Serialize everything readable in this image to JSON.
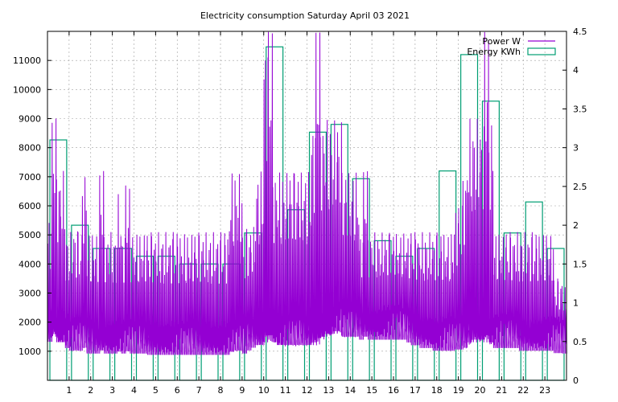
{
  "chart_data": {
    "type": "bar",
    "title": "Electricity consumption Saturday April 03 2021",
    "xlabel": "",
    "ylabel": "",
    "y2label": "",
    "x_ticks": [
      "1",
      "2",
      "3",
      "4",
      "5",
      "6",
      "7",
      "8",
      "9",
      "10",
      "11",
      "12",
      "13",
      "14",
      "15",
      "16",
      "17",
      "18",
      "19",
      "20",
      "21",
      "22",
      "23"
    ],
    "xlim": [
      0,
      24
    ],
    "ylim": [
      0,
      12000
    ],
    "y_ticks": [
      "1000",
      "2000",
      "3000",
      "4000",
      "5000",
      "6000",
      "7000",
      "8000",
      "9000",
      "10000",
      "11000"
    ],
    "y2lim": [
      0,
      4.5
    ],
    "y2_ticks": [
      "0",
      "0.5",
      "1",
      "1.5",
      "2",
      "2.5",
      "3",
      "3.5",
      "4",
      "4.5"
    ],
    "grid": true,
    "legend_position": "top-right",
    "colors": {
      "power": "#9400d3",
      "energy": "#009e73"
    },
    "series": [
      {
        "name": "Power W",
        "kind": "line",
        "axis": "left",
        "x": [
          0.0,
          0.2,
          0.4,
          0.6,
          0.8,
          1.0,
          1.2,
          1.4,
          1.6,
          1.8,
          2.0,
          2.2,
          2.4,
          2.6,
          2.8,
          3.0,
          3.2,
          3.4,
          3.6,
          3.8,
          4.0,
          4.2,
          4.4,
          4.6,
          4.8,
          5.0,
          5.2,
          5.4,
          5.6,
          5.8,
          6.0,
          6.2,
          6.4,
          6.6,
          6.8,
          7.0,
          7.2,
          7.4,
          7.6,
          7.8,
          8.0,
          8.2,
          8.4,
          8.6,
          8.8,
          9.0,
          9.2,
          9.4,
          9.6,
          9.8,
          10.0,
          10.2,
          10.4,
          10.6,
          10.8,
          11.0,
          11.2,
          11.4,
          11.6,
          11.8,
          12.0,
          12.2,
          12.4,
          12.6,
          12.8,
          13.0,
          13.2,
          13.4,
          13.6,
          13.8,
          14.0,
          14.2,
          14.4,
          14.6,
          14.8,
          15.0,
          15.2,
          15.4,
          15.6,
          15.8,
          16.0,
          16.2,
          16.4,
          16.6,
          16.8,
          17.0,
          17.2,
          17.4,
          17.6,
          17.8,
          18.0,
          18.2,
          18.4,
          18.6,
          18.8,
          19.0,
          19.2,
          19.4,
          19.6,
          19.8,
          20.0,
          20.2,
          20.4,
          20.6,
          20.8,
          21.0,
          21.2,
          21.4,
          21.6,
          21.8,
          22.0,
          22.2,
          22.4,
          22.6,
          22.8,
          23.0,
          23.2,
          23.4,
          23.6,
          23.8,
          24.0
        ],
        "high": [
          5600,
          9000,
          7200,
          7200,
          5100,
          5100,
          5300,
          5100,
          7200,
          5100,
          5100,
          5100,
          7200,
          5100,
          5100,
          5100,
          6400,
          5100,
          6700,
          5100,
          5100,
          5100,
          5100,
          5100,
          5100,
          5100,
          5100,
          5100,
          5100,
          5100,
          5100,
          5100,
          5100,
          5100,
          5100,
          5100,
          5100,
          5100,
          5100,
          5100,
          5100,
          5100,
          7200,
          7200,
          7200,
          5100,
          5300,
          5300,
          7200,
          7200,
          11900,
          12000,
          7200,
          7200,
          7200,
          7200,
          7200,
          7200,
          7200,
          7200,
          7200,
          9000,
          12000,
          9000,
          9000,
          9000,
          9000,
          9000,
          7200,
          7200,
          7200,
          7200,
          5100,
          7200,
          5100,
          5100,
          5100,
          5100,
          5100,
          5100,
          5100,
          5100,
          5100,
          5100,
          5100,
          5100,
          5100,
          5100,
          5100,
          5100,
          5100,
          5100,
          5100,
          5100,
          6000,
          6000,
          7200,
          9000,
          9000,
          9000,
          9000,
          12000,
          9000,
          5100,
          5100,
          5100,
          5100,
          5100,
          5100,
          5100,
          5100,
          5100,
          5100,
          5100,
          5100,
          5100,
          5100,
          3500,
          3500,
          3200,
          3200
        ],
        "low": [
          1100,
          1200,
          1000,
          1000,
          900,
          800,
          800,
          800,
          800,
          700,
          700,
          700,
          700,
          700,
          700,
          700,
          700,
          700,
          700,
          700,
          700,
          700,
          700,
          650,
          650,
          650,
          650,
          650,
          650,
          650,
          650,
          650,
          650,
          650,
          650,
          650,
          650,
          650,
          650,
          650,
          650,
          650,
          650,
          700,
          700,
          700,
          800,
          900,
          900,
          900,
          1000,
          1000,
          1000,
          900,
          900,
          900,
          900,
          900,
          900,
          900,
          900,
          900,
          900,
          1100,
          1200,
          1200,
          1300,
          1300,
          1200,
          1200,
          1200,
          1200,
          1200,
          1200,
          1200,
          1200,
          1200,
          1200,
          1200,
          1200,
          1200,
          1200,
          1200,
          1100,
          1000,
          1000,
          900,
          900,
          900,
          800,
          800,
          800,
          800,
          800,
          800,
          800,
          800,
          900,
          1000,
          1000,
          1000,
          1000,
          900,
          900,
          900,
          900,
          900,
          900,
          900,
          800,
          800,
          800,
          800,
          800,
          800,
          800,
          800,
          800,
          800,
          800,
          800
        ]
      },
      {
        "name": "Energy KWh",
        "kind": "bar",
        "axis": "right",
        "x": [
          0.5,
          1.5,
          2.5,
          3.5,
          4.5,
          5.5,
          6.5,
          7.5,
          8.5,
          9.5,
          10.5,
          11.5,
          12.5,
          13.5,
          14.5,
          15.5,
          16.5,
          17.5,
          18.5,
          19.5,
          20.5,
          21.5,
          22.5,
          23.5
        ],
        "values": [
          3.1,
          2.0,
          1.7,
          1.7,
          1.6,
          1.6,
          1.5,
          1.5,
          1.5,
          1.9,
          4.3,
          2.2,
          3.2,
          3.3,
          2.6,
          1.8,
          1.6,
          1.7,
          2.7,
          4.2,
          3.6,
          1.9,
          2.3,
          1.7
        ]
      }
    ]
  }
}
